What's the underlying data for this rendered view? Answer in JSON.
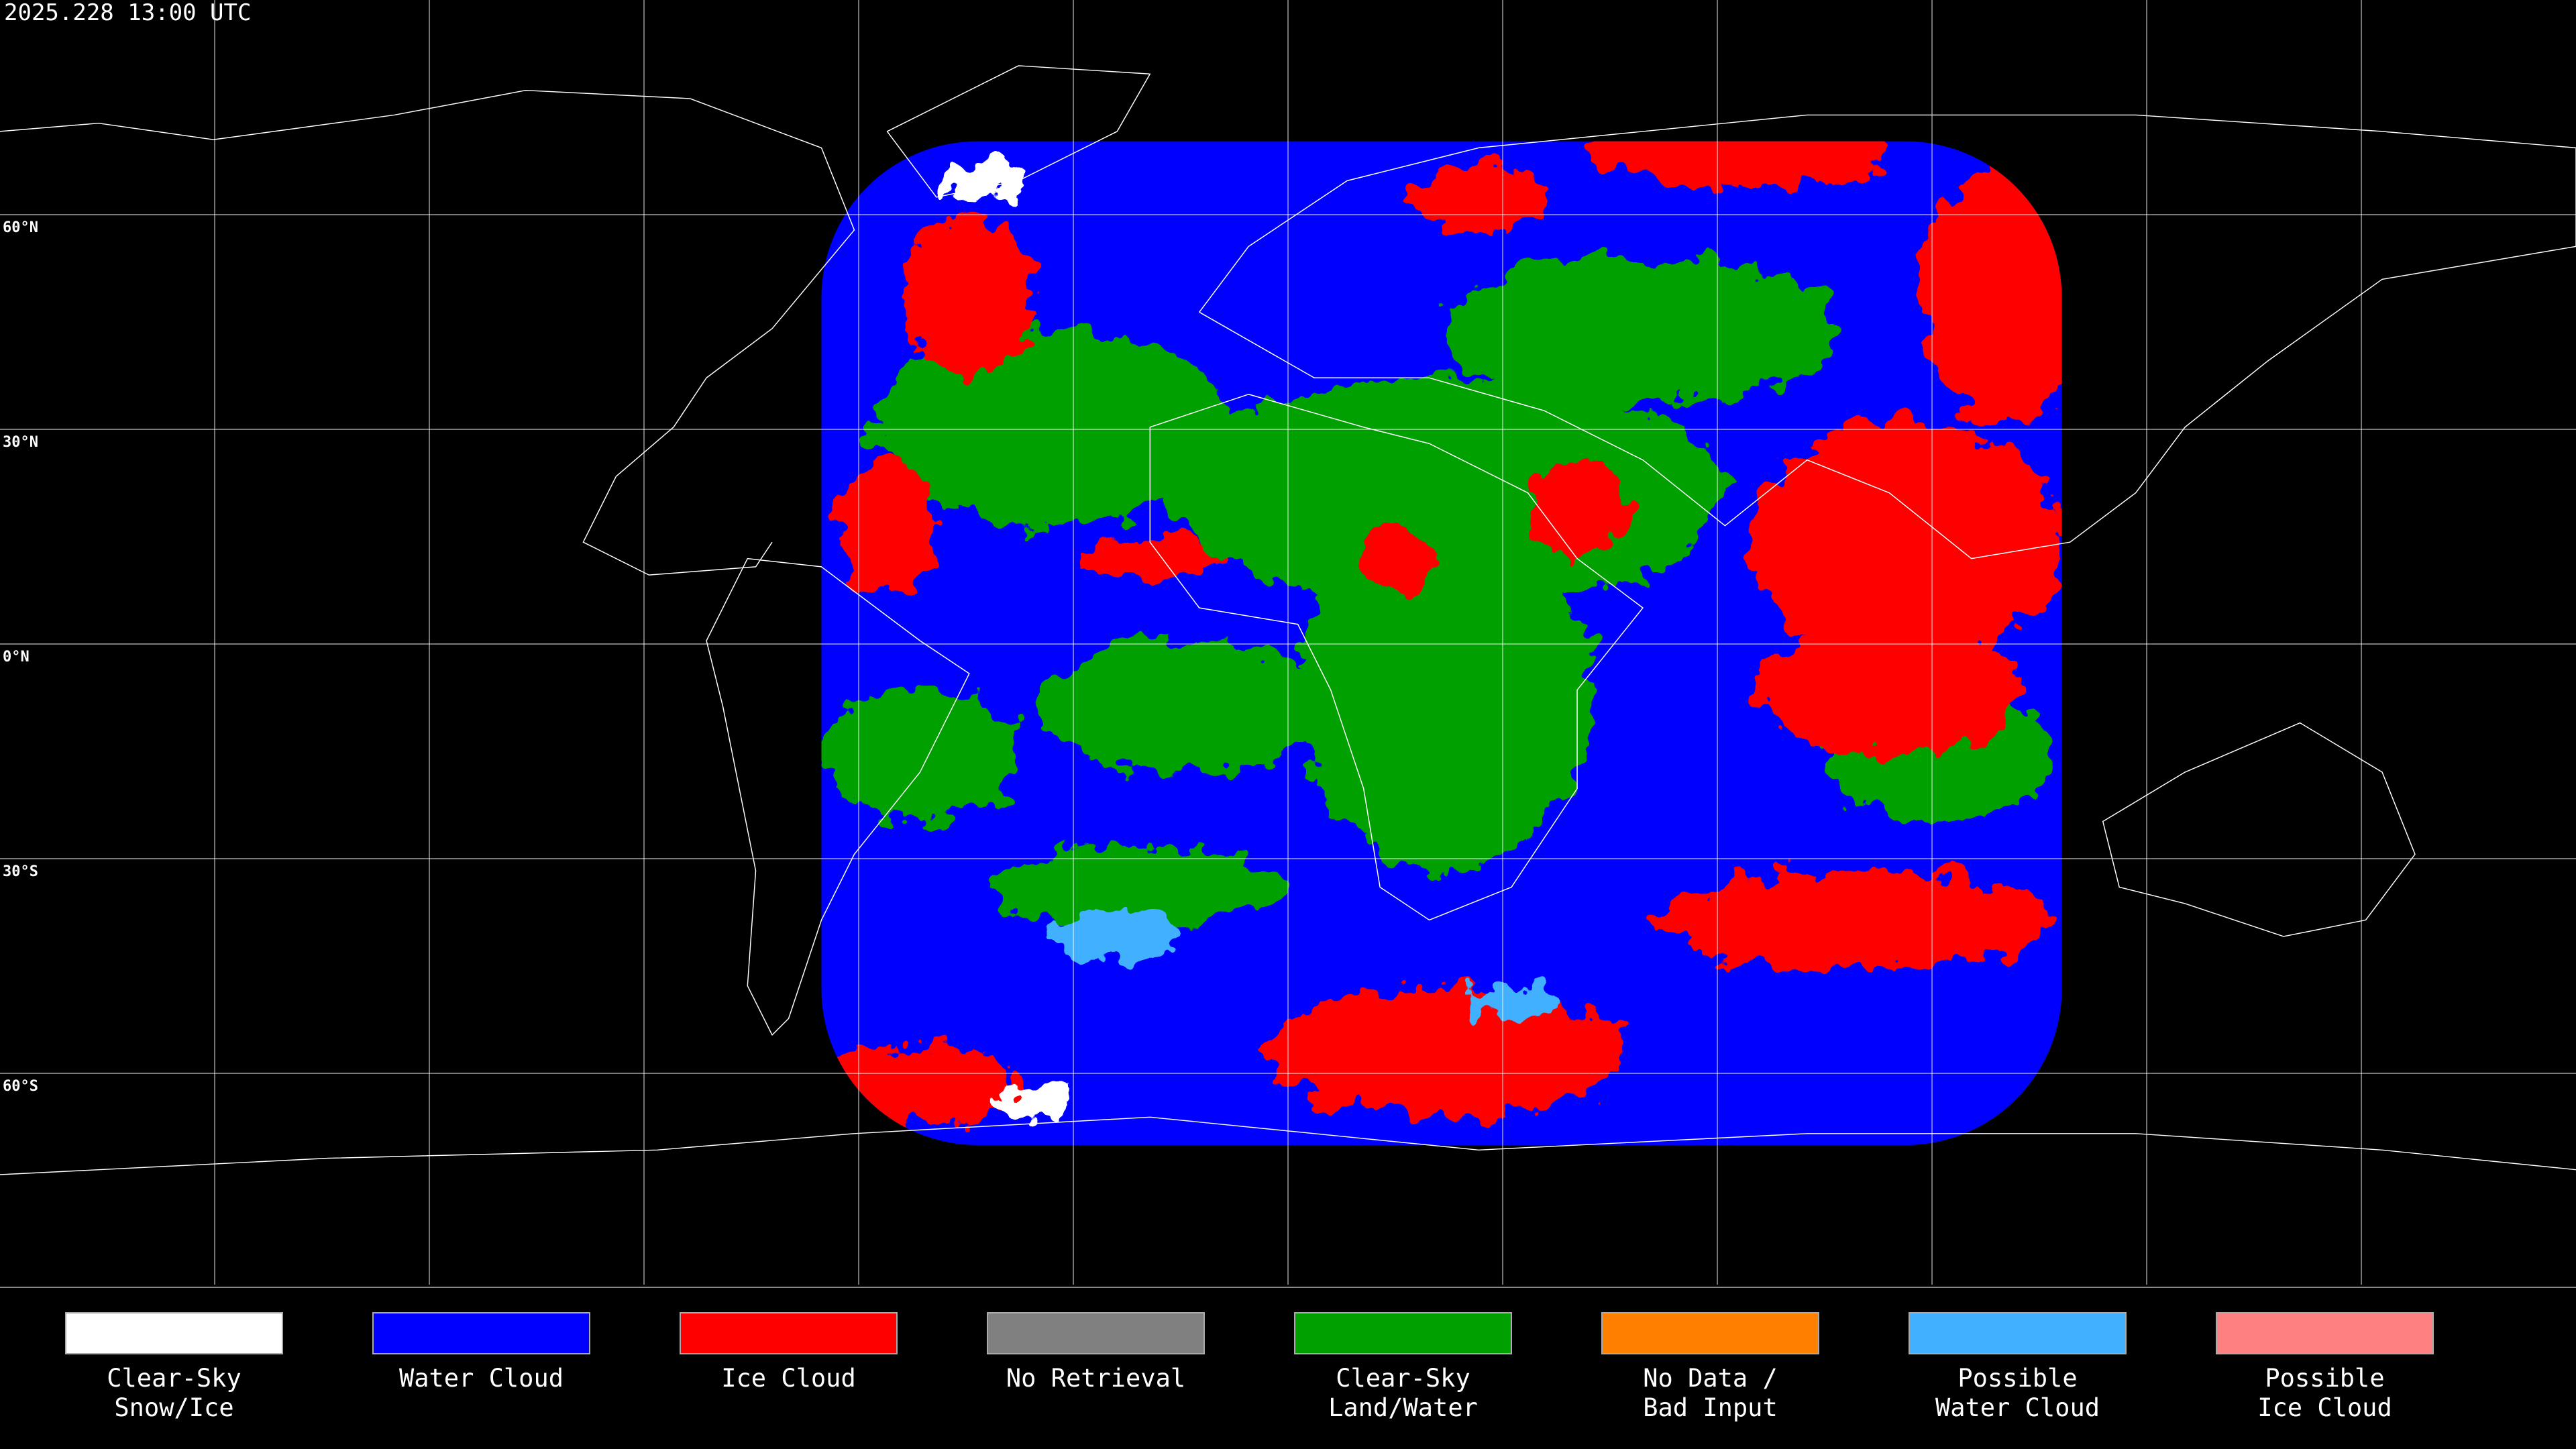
{
  "timestamp": "2025.228 13:00 UTC",
  "latitude_labels": [
    "60°N",
    "30°N",
    "0°N",
    "30°S",
    "60°S"
  ],
  "legend": [
    {
      "label": [
        "Clear-Sky",
        "Snow/Ice"
      ],
      "color": "#ffffff"
    },
    {
      "label": [
        "Water Cloud"
      ],
      "color": "#0000ff"
    },
    {
      "label": [
        "Ice Cloud"
      ],
      "color": "#ff0000"
    },
    {
      "label": [
        "No Retrieval"
      ],
      "color": "#808080"
    },
    {
      "label": [
        "Clear-Sky",
        "Land/Water"
      ],
      "color": "#00a000"
    },
    {
      "label": [
        "No Data /",
        "Bad Input"
      ],
      "color": "#ff8000"
    },
    {
      "label": [
        "Possible",
        "Water Cloud"
      ],
      "color": "#40b0ff"
    },
    {
      "label": [
        "Possible",
        "Ice Cloud"
      ],
      "color": "#ff8080"
    }
  ]
}
